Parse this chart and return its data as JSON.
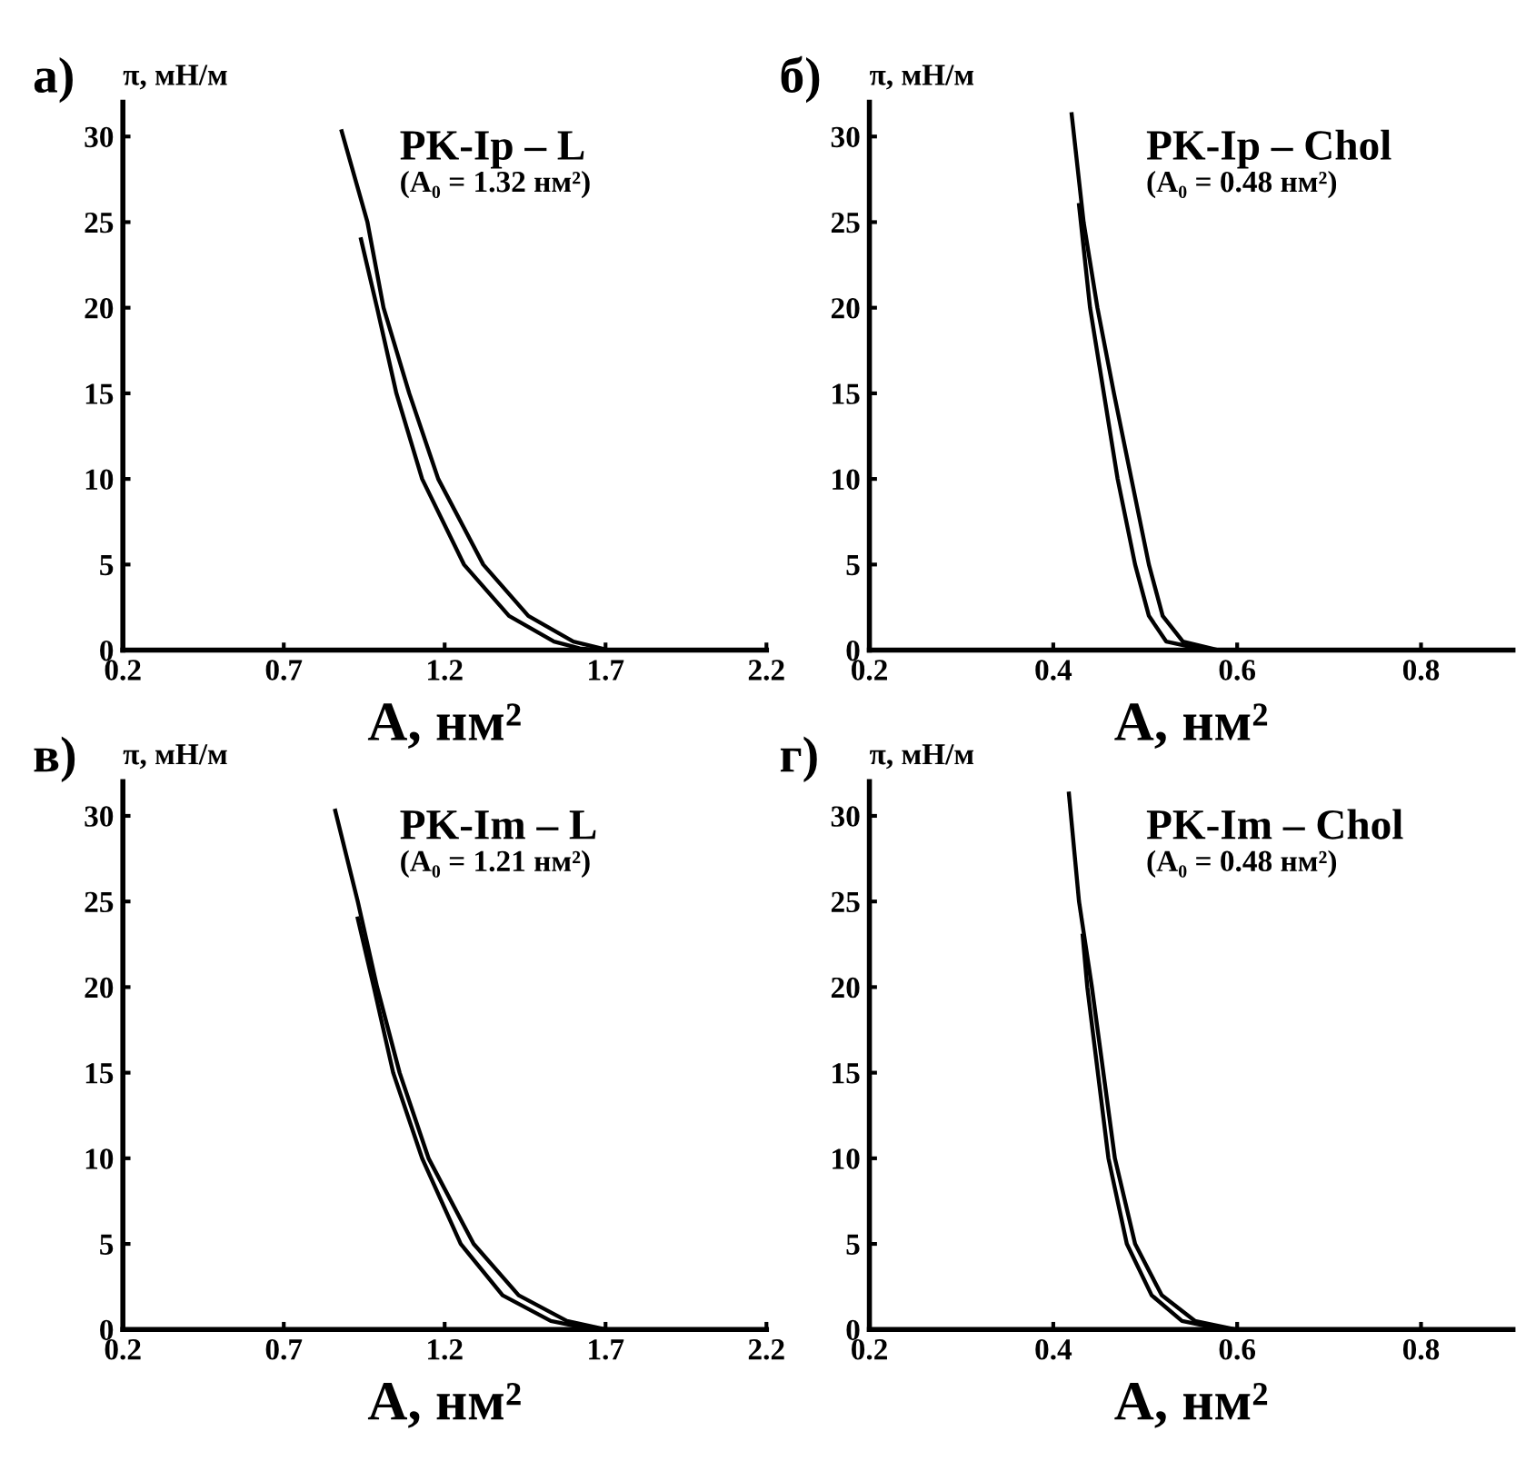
{
  "chart_data": [
    {
      "type": "line",
      "title": "а)",
      "ylabel": "π, мН/м",
      "xlabel": "A, нм²",
      "annotations": [
        "PK-Ip – L",
        "(A₀ = 1.32 нм²)"
      ],
      "xlim": [
        0.2,
        2.2
      ],
      "ylim": [
        0,
        32
      ],
      "xticks": [
        {
          "value": 0.2,
          "label": "0.2"
        },
        {
          "value": 0.7,
          "label": "0.7"
        },
        {
          "value": 1.2,
          "label": "1.2"
        },
        {
          "value": 1.7,
          "label": "1.7"
        },
        {
          "value": 2.2,
          "label": "2.2"
        }
      ],
      "yticks": [
        0,
        5,
        10,
        15,
        20,
        25,
        30
      ],
      "series": [
        {
          "color": "#000000",
          "x": [
            0.88,
            0.96,
            1.01,
            1.09,
            1.18,
            1.32,
            1.46,
            1.6,
            1.71,
            1.9,
            2.2
          ],
          "values": [
            30.3,
            25,
            20,
            15,
            10,
            5,
            2,
            0.5,
            0,
            0,
            0
          ]
        },
        {
          "color": "#000000",
          "x": [
            0.94,
            0.99,
            1.05,
            1.13,
            1.26,
            1.4,
            1.54,
            1.62,
            1.68
          ],
          "values": [
            24,
            20,
            15,
            10,
            5,
            2,
            0.5,
            0.1,
            0
          ]
        }
      ]
    },
    {
      "type": "line",
      "title": "б)",
      "ylabel": "π, мН/м",
      "xlabel": "A, нм²",
      "annotations": [
        "PK-Ip – Chol",
        "(A₀ = 0.48 нм²)"
      ],
      "xlim": [
        0.2,
        0.9
      ],
      "ylim": [
        0,
        32
      ],
      "xticks": [
        {
          "value": 0.2,
          "label": "0.2"
        },
        {
          "value": 0.4,
          "label": "0.4"
        },
        {
          "value": 0.6,
          "label": "0.6"
        },
        {
          "value": 0.8,
          "label": "0.8"
        }
      ],
      "yticks": [
        0,
        5,
        10,
        15,
        20,
        25,
        30
      ],
      "series": [
        {
          "color": "#000000",
          "x": [
            0.42,
            0.433,
            0.448,
            0.466,
            0.485,
            0.504,
            0.519,
            0.541,
            0.58,
            0.9
          ],
          "values": [
            31.3,
            25,
            20,
            15,
            10,
            5,
            2,
            0.5,
            0,
            0
          ]
        },
        {
          "color": "#000000",
          "x": [
            0.428,
            0.44,
            0.455,
            0.47,
            0.489,
            0.504,
            0.523,
            0.566
          ],
          "values": [
            26,
            20,
            15,
            10,
            5,
            2,
            0.5,
            0
          ]
        }
      ]
    },
    {
      "type": "line",
      "title": "в)",
      "ylabel": "π, мН/м",
      "xlabel": "A, нм²",
      "annotations": [
        "PK-Im – L",
        "(A₀ = 1.21 нм²)"
      ],
      "xlim": [
        0.2,
        2.2
      ],
      "ylim": [
        0,
        32
      ],
      "xticks": [
        {
          "value": 0.2,
          "label": "0.2"
        },
        {
          "value": 0.7,
          "label": "0.7"
        },
        {
          "value": 1.2,
          "label": "1.2"
        },
        {
          "value": 1.7,
          "label": "1.7"
        },
        {
          "value": 2.2,
          "label": "2.2"
        }
      ],
      "yticks": [
        0,
        5,
        10,
        15,
        20,
        25,
        30
      ],
      "series": [
        {
          "color": "#000000",
          "x": [
            0.86,
            0.93,
            0.99,
            1.06,
            1.15,
            1.29,
            1.43,
            1.58,
            1.7,
            1.9,
            2.2
          ],
          "values": [
            30.3,
            25,
            20,
            15,
            10,
            5,
            2,
            0.5,
            0,
            0,
            0
          ]
        },
        {
          "color": "#000000",
          "x": [
            0.93,
            0.98,
            1.04,
            1.13,
            1.25,
            1.38,
            1.53,
            1.66
          ],
          "values": [
            24,
            20,
            15,
            10,
            5,
            2,
            0.5,
            0
          ]
        }
      ]
    },
    {
      "type": "line",
      "title": "г)",
      "ylabel": "π, мН/м",
      "xlabel": "A, нм²",
      "annotations": [
        "PK-Im – Chol",
        "(A₀ = 0.48 нм²)"
      ],
      "xlim": [
        0.2,
        0.9
      ],
      "ylim": [
        0,
        32
      ],
      "xticks": [
        {
          "value": 0.2,
          "label": "0.2"
        },
        {
          "value": 0.4,
          "label": "0.4"
        },
        {
          "value": 0.6,
          "label": "0.6"
        },
        {
          "value": 0.8,
          "label": "0.8"
        }
      ],
      "yticks": [
        0,
        5,
        10,
        15,
        20,
        25,
        30
      ],
      "series": [
        {
          "color": "#000000",
          "x": [
            0.417,
            0.428,
            0.442,
            0.467,
            0.489,
            0.518,
            0.554,
            0.598,
            0.7,
            0.9
          ],
          "values": [
            31.3,
            25,
            20,
            10,
            5,
            2,
            0.5,
            0,
            0,
            0
          ]
        },
        {
          "color": "#000000",
          "x": [
            0.432,
            0.437,
            0.46,
            0.48,
            0.507,
            0.54,
            0.585
          ],
          "values": [
            23,
            20,
            10,
            5,
            2,
            0.5,
            0
          ]
        }
      ]
    }
  ]
}
